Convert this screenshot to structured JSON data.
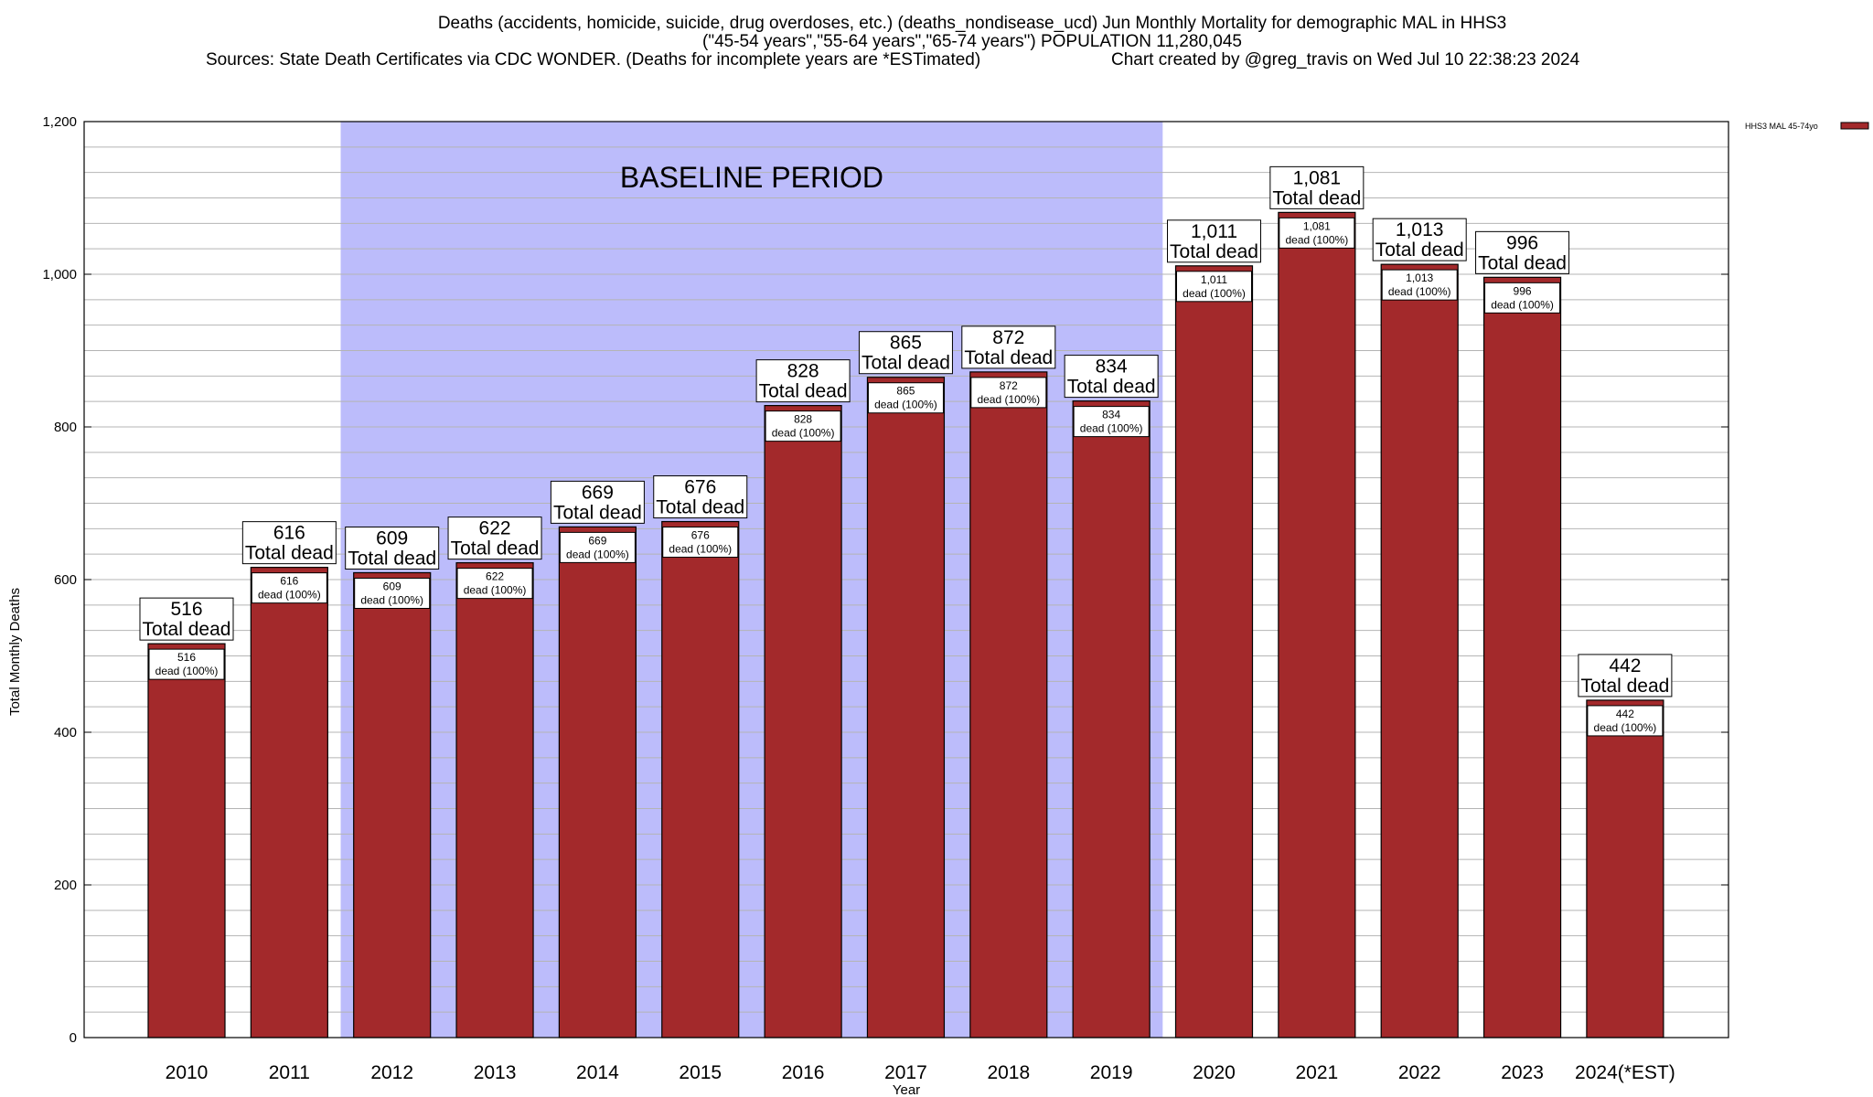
{
  "header": {
    "title_line1": "Deaths (accidents, homicide, suicide, drug overdoses, etc.) (deaths_nondisease_ucd) Jun Monthly Mortality for demographic MAL in HHS3",
    "title_line2": "(\"45-54 years\",\"55-64 years\",\"65-74 years\") POPULATION 11,280,045",
    "sources": "Sources: State Death Certificates via CDC WONDER. (Deaths for incomplete years are *ESTimated)",
    "credit": "Chart created by @greg_travis on Wed Jul 10 22:38:23 2024"
  },
  "baseline_label": "BASELINE PERIOD",
  "label_suffix_big": "Total dead",
  "label_suffix_small": "dead (100%)",
  "colors": {
    "bar_fill": "#a3292b",
    "bar_stroke": "#000000",
    "baseline_fill": "#bcbcfb",
    "grid": "#b4b4b4",
    "background": "#ffffff"
  },
  "chart_data": {
    "type": "bar",
    "title": "Deaths (accidents, homicide, suicide, drug overdoses, etc.) (deaths_nondisease_ucd) Jun Monthly Mortality for demographic MAL in HHS3",
    "xlabel": "Year",
    "ylabel": "Total Monthly Deaths",
    "ylim": [
      0,
      1200
    ],
    "yticks": [
      0,
      200,
      400,
      600,
      800,
      1000,
      1200
    ],
    "ytick_labels": [
      "0",
      "200",
      "400",
      "600",
      "800",
      "1,000",
      "1,200"
    ],
    "grid": true,
    "legend": {
      "position": "top-right",
      "entries": [
        "HHS3 MAL 45-74yo"
      ]
    },
    "categories": [
      "2010",
      "2011",
      "2012",
      "2013",
      "2014",
      "2015",
      "2016",
      "2017",
      "2018",
      "2019",
      "2020",
      "2021",
      "2022",
      "2023",
      "2024(*EST)"
    ],
    "series": [
      {
        "name": "HHS3 MAL 45-74yo",
        "values": [
          516,
          616,
          609,
          622,
          669,
          676,
          828,
          865,
          872,
          834,
          1011,
          1081,
          1013,
          996,
          442
        ]
      }
    ],
    "value_labels": [
      "516",
      "616",
      "609",
      "622",
      "669",
      "676",
      "828",
      "865",
      "872",
      "834",
      "1,011",
      "1,081",
      "1,013",
      "996",
      "442"
    ],
    "baseline_period": {
      "from": "2012",
      "to": "2019"
    }
  }
}
